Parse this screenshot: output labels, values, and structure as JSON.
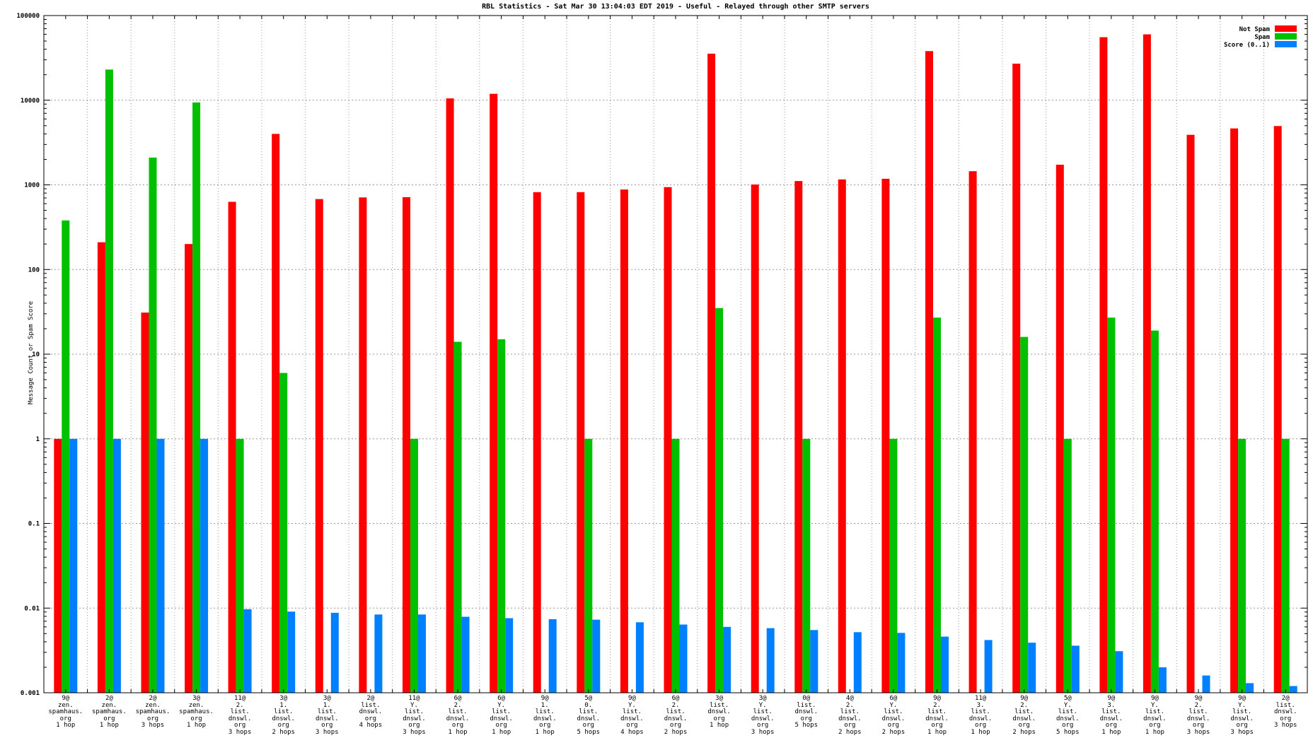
{
  "title": "RBL Statistics - Sat Mar 30 13:04:03 EDT 2019 - Useful - Relayed through other SMTP servers",
  "y_axis_title": "Message Count or Spam Score",
  "chart_data": {
    "type": "bar",
    "title": "RBL Statistics - Sat Mar 30 13:04:03 EDT 2019 - Useful - Relayed through other SMTP servers",
    "xlabel": "",
    "ylabel": "Message Count or Spam Score",
    "y_scale": "log",
    "ylim": [
      0.001,
      100000
    ],
    "y_ticks": [
      "100000",
      "10000",
      "1000",
      "100",
      "10",
      "1",
      "0.1",
      "0.01",
      "0.001"
    ],
    "grid": true,
    "legend_position": "top-right",
    "background": "#ffffff",
    "categories": [
      [
        "9@",
        "zen.",
        "spamhaus.",
        "org",
        "1 hop"
      ],
      [
        "2@",
        "zen.",
        "spamhaus.",
        "org",
        "1 hop"
      ],
      [
        "2@",
        "zen.",
        "spamhaus.",
        "org",
        "3 hops"
      ],
      [
        "3@",
        "zen.",
        "spamhaus.",
        "org",
        "1 hop"
      ],
      [
        "11@",
        "2.",
        "list.",
        "dnswl.",
        "org",
        "3 hops"
      ],
      [
        "3@",
        "1.",
        "list.",
        "dnswl.",
        "org",
        "2 hops"
      ],
      [
        "3@",
        "1.",
        "list.",
        "dnswl.",
        "org",
        "3 hops"
      ],
      [
        "2@",
        "list.",
        "dnswl.",
        "org",
        "4 hops"
      ],
      [
        "11@",
        "Y.",
        "list.",
        "dnswl.",
        "org",
        "3 hops"
      ],
      [
        "6@",
        "2.",
        "list.",
        "dnswl.",
        "org",
        "1 hop"
      ],
      [
        "6@",
        "Y.",
        "list.",
        "dnswl.",
        "org",
        "1 hop"
      ],
      [
        "9@",
        "1.",
        "list.",
        "dnswl.",
        "org",
        "1 hop"
      ],
      [
        "5@",
        "0.",
        "list.",
        "dnswl.",
        "org",
        "5 hops"
      ],
      [
        "9@",
        "Y.",
        "list.",
        "dnswl.",
        "org",
        "4 hops"
      ],
      [
        "6@",
        "2.",
        "list.",
        "dnswl.",
        "org",
        "2 hops"
      ],
      [
        "3@",
        "list.",
        "dnswl.",
        "org",
        "1 hop"
      ],
      [
        "3@",
        "Y.",
        "list.",
        "dnswl.",
        "org",
        "3 hops"
      ],
      [
        "0@",
        "list.",
        "dnswl.",
        "org",
        "5 hops"
      ],
      [
        "4@",
        "2.",
        "list.",
        "dnswl.",
        "org",
        "2 hops"
      ],
      [
        "6@",
        "Y.",
        "list.",
        "dnswl.",
        "org",
        "2 hops"
      ],
      [
        "9@",
        "2.",
        "list.",
        "dnswl.",
        "org",
        "1 hop"
      ],
      [
        "11@",
        "3.",
        "list.",
        "dnswl.",
        "org",
        "1 hop"
      ],
      [
        "9@",
        "2.",
        "list.",
        "dnswl.",
        "org",
        "2 hops"
      ],
      [
        "5@",
        "Y.",
        "list.",
        "dnswl.",
        "org",
        "5 hops"
      ],
      [
        "9@",
        "3.",
        "list.",
        "dnswl.",
        "org",
        "1 hop"
      ],
      [
        "9@",
        "Y.",
        "list.",
        "dnswl.",
        "org",
        "1 hop"
      ],
      [
        "9@",
        "2.",
        "list.",
        "dnswl.",
        "org",
        "3 hops"
      ],
      [
        "9@",
        "Y.",
        "list.",
        "dnswl.",
        "org",
        "3 hops"
      ],
      [
        "2@",
        "list.",
        "dnswl.",
        "org",
        "3 hops"
      ]
    ],
    "series": [
      {
        "name": "Not Spam",
        "color": "#ff0000",
        "values": [
          1,
          210,
          31,
          200,
          630,
          4000,
          680,
          710,
          715,
          10500,
          11900,
          820,
          820,
          880,
          940,
          35500,
          1010,
          1110,
          1160,
          1180,
          38000,
          1450,
          27000,
          1730,
          55500,
          60000,
          3900,
          4640,
          4950
        ]
      },
      {
        "name": "Spam",
        "color": "#00c000",
        "values": [
          380,
          23000,
          2100,
          9400,
          1,
          6,
          0,
          0,
          1,
          14,
          15,
          0,
          1,
          0,
          1,
          35,
          0,
          1,
          0,
          1,
          27,
          0,
          16,
          1,
          27,
          19,
          0,
          1,
          1
        ]
      },
      {
        "name": "Score (0..1)",
        "color": "#0080ff",
        "values": [
          1,
          1,
          1,
          1,
          0.0097,
          0.0091,
          0.0088,
          0.0084,
          0.0084,
          0.0079,
          0.0076,
          0.0074,
          0.0073,
          0.0068,
          0.0064,
          0.006,
          0.0058,
          0.0055,
          0.0052,
          0.0051,
          0.0046,
          0.0042,
          0.0039,
          0.0036,
          0.0031,
          0.002,
          0.0016,
          0.0013,
          0.0012
        ]
      }
    ]
  }
}
